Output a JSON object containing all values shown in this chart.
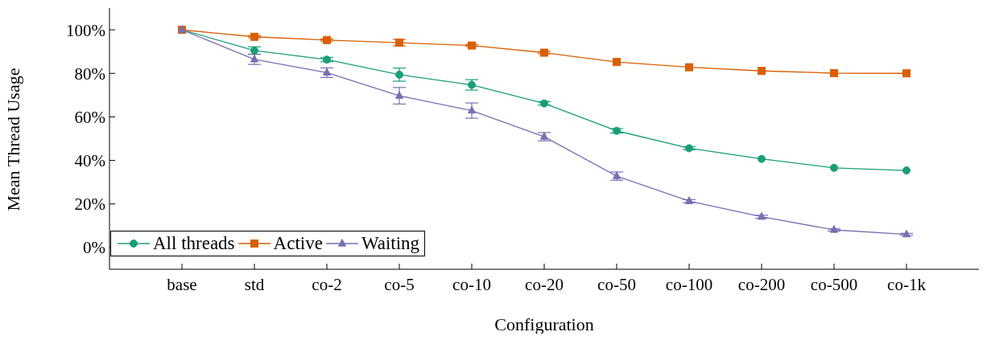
{
  "chart_data": {
    "type": "line",
    "xlabel": "Configuration",
    "ylabel": "Mean Thread Usage",
    "categories": [
      "base",
      "std",
      "co-2",
      "co-5",
      "co-10",
      "co-20",
      "co-50",
      "co-100",
      "co-200",
      "co-500",
      "co-1k"
    ],
    "ylim": [
      -10,
      110
    ],
    "yticks": [
      {
        "value": 0,
        "label": "0%"
      },
      {
        "value": 20,
        "label": "20%"
      },
      {
        "value": 40,
        "label": "40%"
      },
      {
        "value": 60,
        "label": "60%"
      },
      {
        "value": 80,
        "label": "80%"
      },
      {
        "value": 100,
        "label": "100%"
      }
    ],
    "grid": false,
    "legend": "bottom left",
    "line_style": "solid",
    "series": [
      {
        "name": "All threads",
        "color": "#1b9e77",
        "marker": "circle",
        "values": [
          100,
          90.5,
          86.3,
          79.4,
          74.7,
          66.2,
          53.6,
          45.6,
          40.7,
          36.6,
          35.4
        ],
        "errors": [
          null,
          1.7,
          1,
          3,
          2.4,
          0.8,
          1,
          0.7,
          null,
          null,
          null
        ]
      },
      {
        "name": "Active",
        "color": "#d95f02",
        "marker": "square",
        "values": [
          100,
          96.8,
          95.3,
          94.1,
          92.8,
          89.5,
          85.2,
          82.8,
          81.1,
          80.1,
          80.0
        ],
        "errors": [
          null,
          0.5,
          0.5,
          1.5,
          0.5,
          0.5,
          null,
          null,
          null,
          null,
          null
        ]
      },
      {
        "name": "Waiting",
        "color": "#7570b3",
        "marker": "triangle",
        "values": [
          100,
          86.4,
          80.3,
          69.7,
          62.9,
          50.9,
          32.8,
          21.3,
          14.1,
          8.1,
          6.0
        ],
        "errors": [
          null,
          2.3,
          2.2,
          3.8,
          3.5,
          1.9,
          1.9,
          0.7,
          0.7,
          0.5,
          0.5
        ]
      }
    ]
  }
}
